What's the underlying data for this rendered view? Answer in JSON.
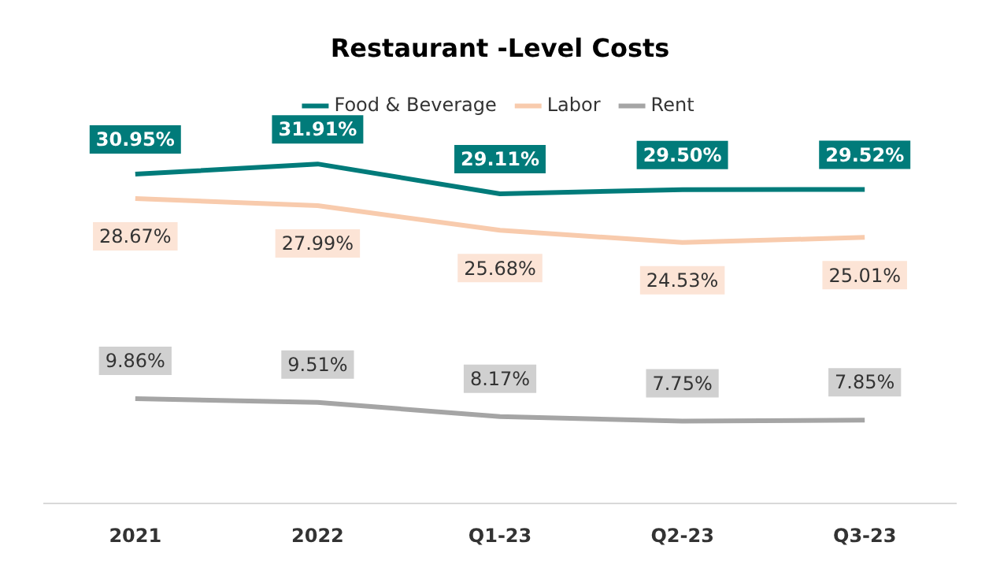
{
  "chart_data": {
    "type": "line",
    "title": "Restaurant -Level Costs",
    "categories": [
      "2021",
      "2022",
      "Q1-23",
      "Q2-23",
      "Q3-23"
    ],
    "legend": "top",
    "grid": false,
    "marker": "none",
    "series": [
      {
        "name": "Food & Beverage",
        "color": "#017b7a",
        "values": [
          30.95,
          31.91,
          29.11,
          29.5,
          29.52
        ],
        "value_labels": [
          "30.95%",
          "31.91%",
          "29.11%",
          "29.50%",
          "29.52%"
        ]
      },
      {
        "name": "Labor",
        "color": "#f8cbad",
        "values": [
          28.67,
          27.99,
          25.68,
          24.53,
          25.01
        ],
        "value_labels": [
          "28.67%",
          "27.99%",
          "25.68%",
          "24.53%",
          "25.01%"
        ]
      },
      {
        "name": "Rent",
        "color": "#a5a5a5",
        "values": [
          9.86,
          9.51,
          8.17,
          7.75,
          7.85
        ],
        "value_labels": [
          "9.86%",
          "9.51%",
          "8.17%",
          "7.75%",
          "7.85%"
        ]
      }
    ]
  }
}
